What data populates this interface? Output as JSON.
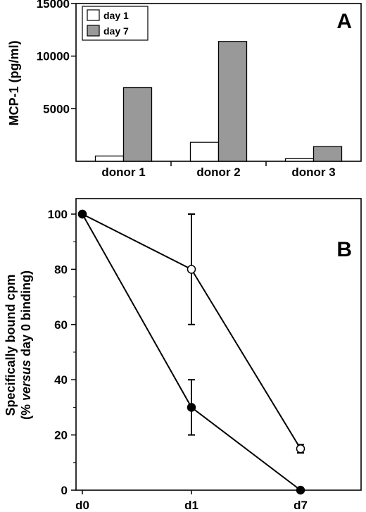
{
  "chart_data": [
    {
      "type": "bar",
      "panel_label": "A",
      "ylabel": "MCP-1 (pg/ml)",
      "xlabel": "",
      "categories": [
        "donor 1",
        "donor 2",
        "donor 3"
      ],
      "ylim": [
        0,
        15000
      ],
      "yticks": [
        5000,
        10000,
        15000
      ],
      "legend_position": "top-left",
      "series": [
        {
          "name": "day 1",
          "color": "#ffffff",
          "values": [
            500,
            1800,
            250
          ]
        },
        {
          "name": "day 7",
          "color": "#999999",
          "values": [
            7000,
            11400,
            1400
          ]
        }
      ]
    },
    {
      "type": "line",
      "panel_label": "B",
      "ylabel_line1": "Specifically bound cpm",
      "ylabel_line2_pre": "(% ",
      "ylabel_line2_italic": "versus",
      "ylabel_line2_post": " day 0 binding)",
      "categories": [
        "d0",
        "d1",
        "d7"
      ],
      "ylim": [
        0,
        100
      ],
      "yticks": [
        0,
        20,
        40,
        60,
        80,
        100
      ],
      "series": [
        {
          "marker": "open-circle",
          "values": [
            100,
            80,
            15
          ],
          "errors": [
            0,
            20,
            1.5
          ]
        },
        {
          "marker": "filled-circle",
          "values": [
            100,
            30,
            0
          ],
          "errors": [
            0,
            10,
            0
          ]
        }
      ]
    }
  ]
}
